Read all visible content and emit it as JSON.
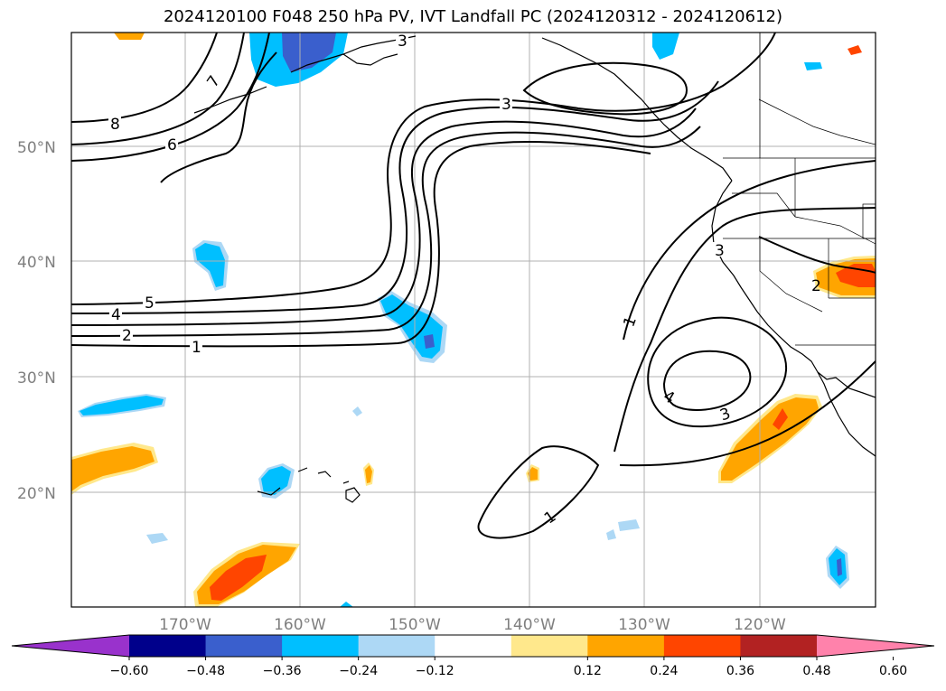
{
  "title": "2024120100 F048 250 hPa PV, IVT Landfall PC (2024120312 - 2024120612)",
  "map": {
    "lon_ticks": [
      "170°W",
      "160°W",
      "150°W",
      "140°W",
      "130°W",
      "120°W"
    ],
    "lat_ticks": [
      "50°N",
      "40°N",
      "30°N",
      "20°N"
    ],
    "contour_labels": [
      "8",
      "7",
      "6",
      "5",
      "4",
      "3",
      "2",
      "1",
      "3",
      "1",
      "3",
      "4",
      "3",
      "1",
      "2"
    ]
  },
  "colorbar": {
    "ticks": [
      "−0.60",
      "−0.48",
      "−0.36",
      "−0.24",
      "−0.12",
      "0.12",
      "0.24",
      "0.36",
      "0.48",
      "0.60"
    ],
    "colors": [
      "#9932cc",
      "#00008b",
      "#3a5fcd",
      "#00bfff",
      "#add8f5",
      "#ffffff",
      "#ffe88c",
      "#ffa500",
      "#ff4500",
      "#b22222",
      "#ff82ab"
    ]
  }
}
